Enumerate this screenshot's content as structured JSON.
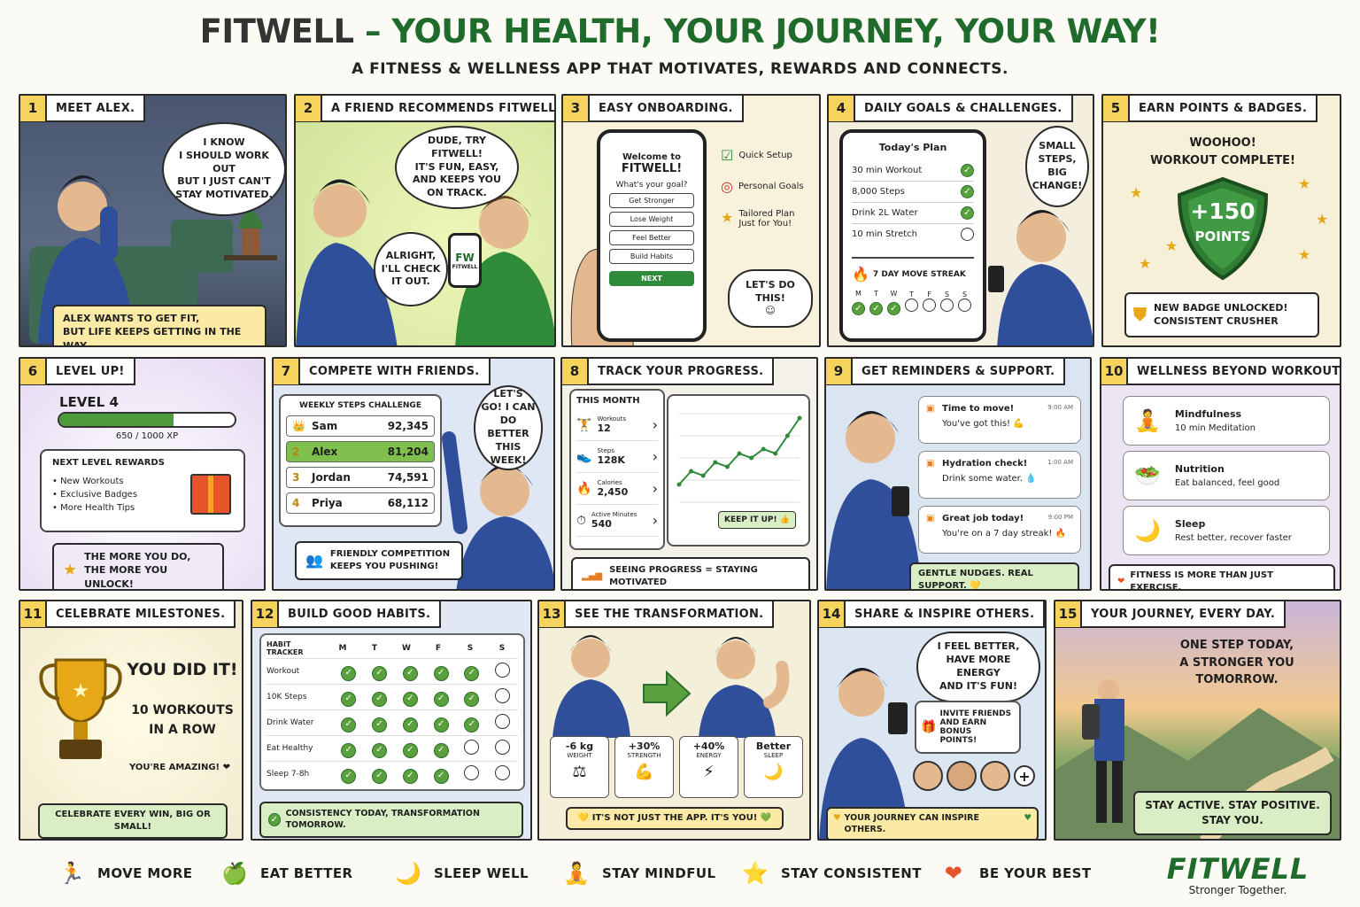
{
  "header": {
    "brand": "FITWELL",
    "tagline": "– YOUR HEALTH, YOUR JOURNEY, YOUR WAY!",
    "subtitle": "A FITNESS & WELLNESS APP THAT MOTIVATES, REWARDS AND CONNECTS."
  },
  "p1": {
    "num": "1",
    "title": "MEET ALEX.",
    "bubble": "I KNOW\nI SHOULD WORK OUT\nBUT I JUST CAN'T\nSTAY MOTIVATED.",
    "caption": "ALEX WANTS TO GET FIT,\nBUT LIFE KEEPS GETTING IN THE WAY."
  },
  "p2": {
    "num": "2",
    "title": "A FRIEND RECOMMENDS FITWELL.",
    "bubble1": "DUDE, TRY FITWELL!\nIT'S FUN, EASY,\nAND KEEPS YOU\nON TRACK.",
    "bubble2": "ALRIGHT,\nI'LL CHECK\nIT OUT.",
    "phone_logo": "FW",
    "phone_sub": "FITWELL"
  },
  "p3": {
    "num": "3",
    "title": "EASY ONBOARDING.",
    "welcome": "Welcome to",
    "app": "FITWELL!",
    "question": "What's your goal?",
    "options": [
      "Get Stronger",
      "Lose Weight",
      "Feel Better",
      "Build Habits"
    ],
    "next": "NEXT",
    "features": [
      "Quick Setup",
      "Personal Goals",
      "Tailored Plan\nJust for You!"
    ],
    "bubble": "LET'S DO THIS!\n☺"
  },
  "p4": {
    "num": "4",
    "title": "DAILY GOALS & CHALLENGES.",
    "plan_title": "Today's Plan",
    "tasks": [
      "30 min Workout",
      "8,000 Steps",
      "Drink 2L Water",
      "10 min Stretch"
    ],
    "streak": "7 DAY MOVE STREAK",
    "days": [
      "M",
      "T",
      "W",
      "T",
      "F",
      "S",
      "S"
    ],
    "bubble": "SMALL\nSTEPS,\nBIG\nCHANGE!"
  },
  "p5": {
    "num": "5",
    "title": "EARN POINTS & BADGES.",
    "cheer": "WOOHOO!\nWORKOUT COMPLETE!",
    "points": "+150",
    "points_label": "POINTS",
    "badge": "NEW BADGE UNLOCKED!\nCONSISTENT CRUSHER"
  },
  "p6": {
    "num": "6",
    "title": "LEVEL UP!",
    "level": "LEVEL 4",
    "xp": "650 / 1000 XP",
    "xp_fraction": 0.65,
    "rewards_title": "NEXT LEVEL REWARDS",
    "rewards": [
      "New Workouts",
      "Exclusive Badges",
      "More Health Tips"
    ],
    "caption": "THE MORE YOU DO,\nTHE MORE YOU UNLOCK!"
  },
  "p7": {
    "num": "7",
    "title": "COMPETE WITH FRIENDS.",
    "board_title": "WEEKLY STEPS CHALLENGE",
    "ranks": [
      {
        "name": "Sam",
        "steps": "92,345",
        "rank": "👑"
      },
      {
        "name": "Alex",
        "steps": "81,204",
        "rank": "2"
      },
      {
        "name": "Jordan",
        "steps": "74,591",
        "rank": "3"
      },
      {
        "name": "Priya",
        "steps": "68,112",
        "rank": "4"
      }
    ],
    "bubble": "LET'S\nGO! I CAN\nDO BETTER\nTHIS WEEK!",
    "caption": "FRIENDLY COMPETITION\nKEEPS YOU PUSHING!"
  },
  "p8": {
    "num": "8",
    "title": "TRACK YOUR PROGRESS.",
    "month": "THIS MONTH",
    "stats": [
      {
        "label": "Workouts",
        "value": "12"
      },
      {
        "label": "Steps",
        "value": "128K"
      },
      {
        "label": "Calories",
        "value": "2,450"
      },
      {
        "label": "Active Minutes",
        "value": "540"
      }
    ],
    "chart_values": [
      20,
      35,
      30,
      45,
      40,
      55,
      50,
      60,
      55,
      75,
      95
    ],
    "keep": "KEEP IT UP! 👍",
    "caption": "SEEING PROGRESS = STAYING MOTIVATED"
  },
  "p9": {
    "num": "9",
    "title": "GET REMINDERS & SUPPORT.",
    "notes": [
      {
        "title": "Time to move!",
        "body": "You've got this! 💪",
        "time": "9:00 AM"
      },
      {
        "title": "Hydration check!",
        "body": "Drink some water. 💧",
        "time": "1:00 AM"
      },
      {
        "title": "Great job today!",
        "body": "You're on a 7 day streak! 🔥",
        "time": "9:00 PM"
      }
    ],
    "caption": "GENTLE NUDGES. REAL SUPPORT. 💛"
  },
  "p10": {
    "num": "10",
    "title": "WELLNESS BEYOND WORKOUTS.",
    "items": [
      {
        "title": "Mindfulness",
        "body": "10 min Meditation",
        "icon": "🧘"
      },
      {
        "title": "Nutrition",
        "body": "Eat balanced, feel good",
        "icon": "🥗"
      },
      {
        "title": "Sleep",
        "body": "Rest better, recover faster",
        "icon": "🌙"
      }
    ],
    "caption": "FITNESS IS MORE THAN JUST EXERCISE."
  },
  "p11": {
    "num": "11",
    "title": "CELEBRATE MILESTONES.",
    "big": "YOU DID IT!",
    "sub": "10 WORKOUTS\nIN A ROW",
    "amazing": "YOU'RE AMAZING! ❤",
    "caption": "CELEBRATE EVERY WIN, BIG OR SMALL!"
  },
  "p12": {
    "num": "12",
    "title": "BUILD GOOD HABITS.",
    "tracker": "HABIT TRACKER",
    "days": [
      "M",
      "T",
      "W",
      "F",
      "S",
      "S"
    ],
    "habits": [
      {
        "name": "Workout",
        "done": 5
      },
      {
        "name": "10K Steps",
        "done": 5
      },
      {
        "name": "Drink Water",
        "done": 5
      },
      {
        "name": "Eat Healthy",
        "done": 4
      },
      {
        "name": "Sleep 7-8h",
        "done": 4
      }
    ],
    "caption": "CONSISTENCY TODAY, TRANSFORMATION TOMORROW."
  },
  "p13": {
    "num": "13",
    "title": "SEE THE TRANSFORMATION.",
    "stats": [
      {
        "value": "-6 kg",
        "label": "WEIGHT",
        "icon": "⚖"
      },
      {
        "value": "+30%",
        "label": "STRENGTH",
        "icon": "💪"
      },
      {
        "value": "+40%",
        "label": "ENERGY",
        "icon": "⚡"
      },
      {
        "value": "Better",
        "label": "SLEEP",
        "icon": "🌙"
      }
    ],
    "caption": "💛 IT'S NOT JUST THE APP. IT'S YOU! 💚"
  },
  "p14": {
    "num": "14",
    "title": "SHARE & INSPIRE OTHERS.",
    "bubble": "I FEEL BETTER,\nHAVE MORE ENERGY\nAND IT'S FUN!",
    "invite": "INVITE FRIENDS\nAND EARN BONUS\nPOINTS!",
    "caption": "YOUR JOURNEY CAN INSPIRE OTHERS."
  },
  "p15": {
    "num": "15",
    "title": "YOUR JOURNEY, EVERY DAY.",
    "quote": "ONE STEP TODAY,\nA STRONGER YOU\nTOMORROW.",
    "caption": "STAY ACTIVE. STAY POSITIVE.\nSTAY YOU."
  },
  "footer": {
    "items": [
      {
        "label": "MOVE MORE",
        "icon": "🏃"
      },
      {
        "label": "EAT BETTER",
        "icon": "🍏"
      },
      {
        "label": "SLEEP WELL",
        "icon": "🌙"
      },
      {
        "label": "STAY MINDFUL",
        "icon": "🧘"
      },
      {
        "label": "STAY CONSISTENT",
        "icon": "⭐"
      },
      {
        "label": "BE YOUR BEST",
        "icon": "❤"
      }
    ],
    "brand": "FITWELL",
    "slogan": "Stronger Together."
  },
  "colors": {
    "green": "#1f6b2c",
    "yellow": "#f5d35c",
    "blue": "#2f4f9a"
  }
}
